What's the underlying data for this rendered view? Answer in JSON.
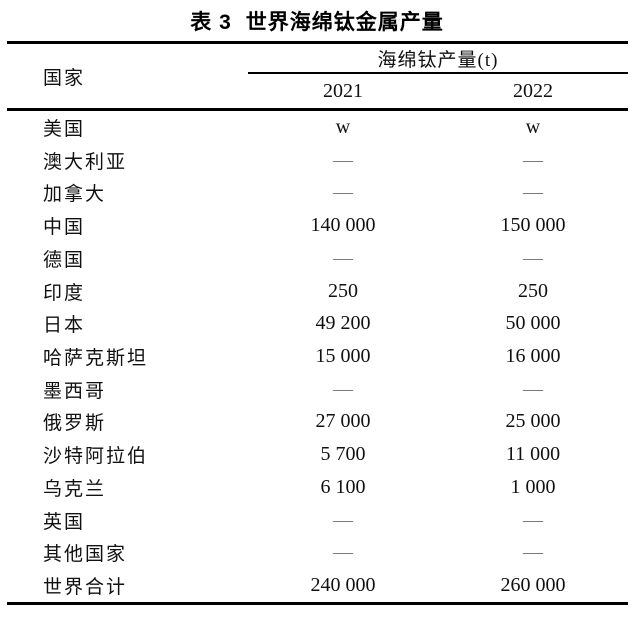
{
  "title": {
    "label": "表 3",
    "text": "世界海绵钛金属产量"
  },
  "table": {
    "country_header": "国家",
    "span_header": "海绵钛产量(t)",
    "year_headers": [
      "2021",
      "2022"
    ],
    "dash_symbol": "—",
    "rows": [
      {
        "country": "美国",
        "v2021": "w",
        "v2022": "w"
      },
      {
        "country": "澳大利亚",
        "v2021": "—",
        "v2022": "—"
      },
      {
        "country": "加拿大",
        "v2021": "—",
        "v2022": "—"
      },
      {
        "country": "中国",
        "v2021": "140 000",
        "v2022": "150 000"
      },
      {
        "country": "德国",
        "v2021": "—",
        "v2022": "—"
      },
      {
        "country": "印度",
        "v2021": "250",
        "v2022": "250"
      },
      {
        "country": "日本",
        "v2021": "49 200",
        "v2022": "50 000"
      },
      {
        "country": "哈萨克斯坦",
        "v2021": "15 000",
        "v2022": "16 000"
      },
      {
        "country": "墨西哥",
        "v2021": "—",
        "v2022": "—"
      },
      {
        "country": "俄罗斯",
        "v2021": "27 000",
        "v2022": "25 000"
      },
      {
        "country": "沙特阿拉伯",
        "v2021": "5 700",
        "v2022": "11 000"
      },
      {
        "country": "乌克兰",
        "v2021": "6 100",
        "v2022": "1 000"
      },
      {
        "country": "英国",
        "v2021": "—",
        "v2022": "—"
      },
      {
        "country": "其他国家",
        "v2021": "—",
        "v2022": "—"
      },
      {
        "country": "世界合计",
        "v2021": "240 000",
        "v2022": "260 000"
      }
    ],
    "colors": {
      "text": "#111111",
      "rule": "#000000",
      "dash": "#7a7a7a",
      "background": "#ffffff"
    }
  }
}
